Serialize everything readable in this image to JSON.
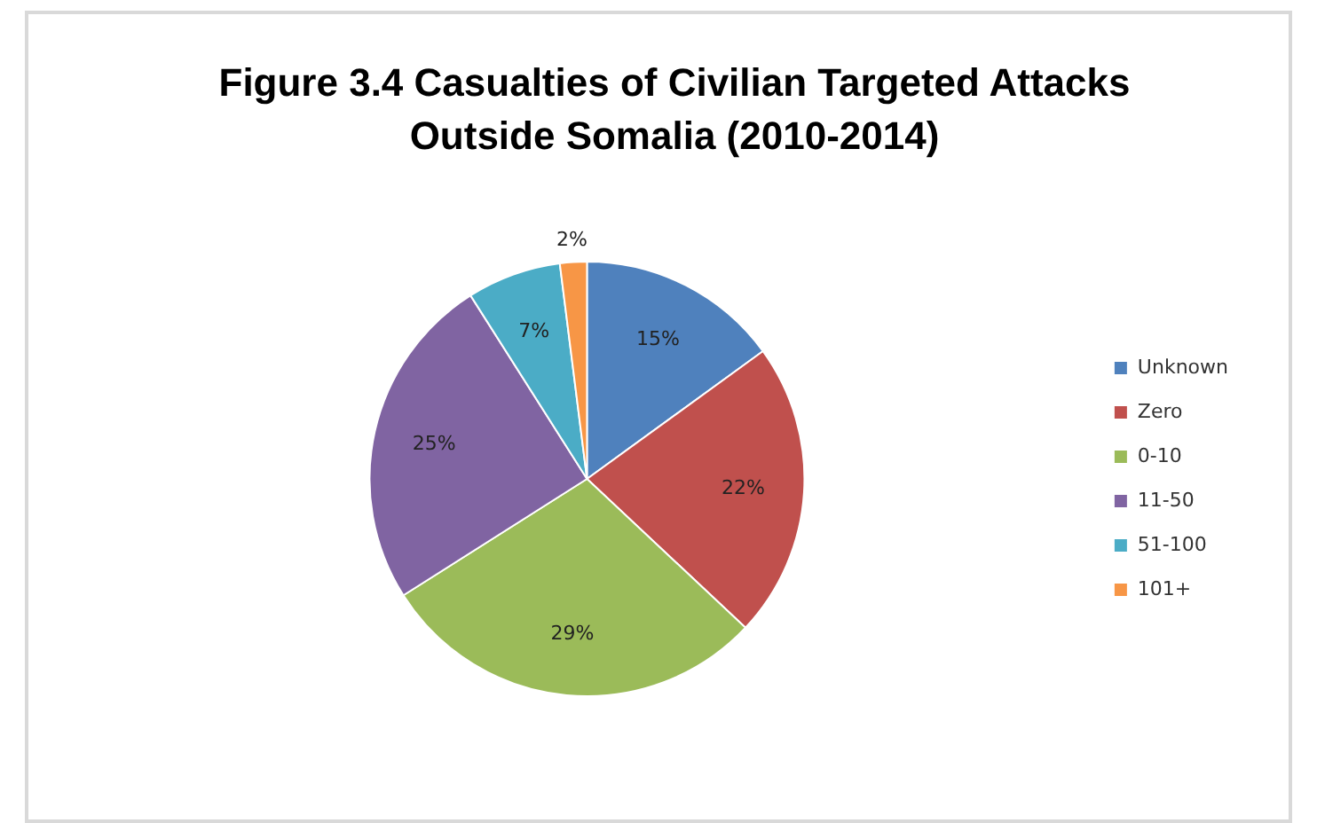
{
  "chart_data": {
    "type": "pie",
    "title": "Figure 3.4 Casualties of Civilian Targeted Attacks Outside Somalia (2010-2014)",
    "categories": [
      "Unknown",
      "Zero",
      "0-10",
      "11-50",
      "51-100",
      "101+"
    ],
    "values": [
      15,
      22,
      29,
      25,
      7,
      2
    ],
    "colors": [
      "#4f81bd",
      "#c0504d",
      "#9bbb59",
      "#8064a2",
      "#4bacc6",
      "#f79646"
    ],
    "value_labels": [
      "15%",
      "22%",
      "29%",
      "25%",
      "7%",
      "2%"
    ],
    "legend": "right"
  }
}
